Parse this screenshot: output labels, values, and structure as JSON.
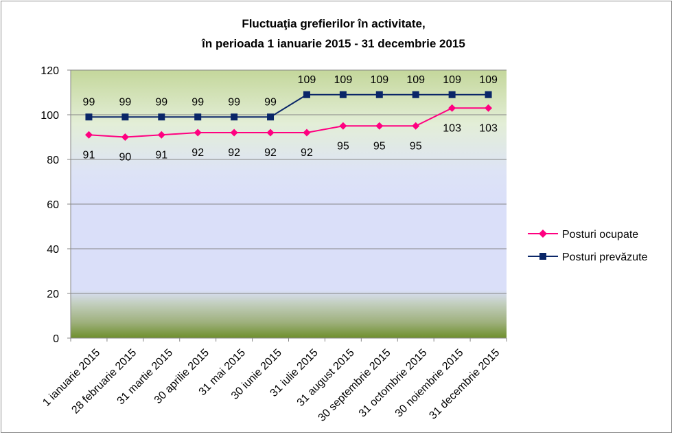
{
  "chart_data": {
    "type": "line",
    "title": [
      "Fluctuaţia grefierilor în activitate,",
      "în perioada 1 ianuarie 2015 - 31 decembrie 2015"
    ],
    "xlabel": "",
    "ylabel": "",
    "categories": [
      "1 ianuarie 2015",
      "28 februarie 2015",
      "31 martie 2015",
      "30 aprilie 2015",
      "31 mai 2015",
      "30 iunie 2015",
      "31 iulie 2015",
      "31 august 2015",
      "30 septembrie 2015",
      "31 octombrie 2015",
      "30 noiembrie 2015",
      "31 decembrie 2015"
    ],
    "series": [
      {
        "name": "Posturi ocupate",
        "color": "#ff0080",
        "marker": "diamond",
        "values": [
          91,
          90,
          91,
          92,
          92,
          92,
          92,
          95,
          95,
          95,
          103,
          103
        ],
        "labels": [
          "91",
          "90",
          "91",
          "92",
          "92",
          "92",
          "92",
          "95",
          "95",
          "95",
          "103",
          "103"
        ]
      },
      {
        "name": "Posturi prevăzute",
        "color": "#0a2668",
        "marker": "square",
        "values": [
          99,
          99,
          99,
          99,
          99,
          99,
          109,
          109,
          109,
          109,
          109,
          109
        ],
        "labels": [
          "99",
          "99",
          "99",
          "99",
          "99",
          "99",
          "109",
          "109",
          "109",
          "109",
          "109",
          "109"
        ]
      }
    ],
    "ylim": [
      0,
      120
    ],
    "yticks": [
      0,
      20,
      40,
      60,
      80,
      100,
      120
    ],
    "ytick_labels": [
      "0",
      "20",
      "40",
      "60",
      "80",
      "100",
      "120"
    ],
    "grid": true,
    "legend_position": "right",
    "plot_background": "gradient green-lavender-green"
  }
}
